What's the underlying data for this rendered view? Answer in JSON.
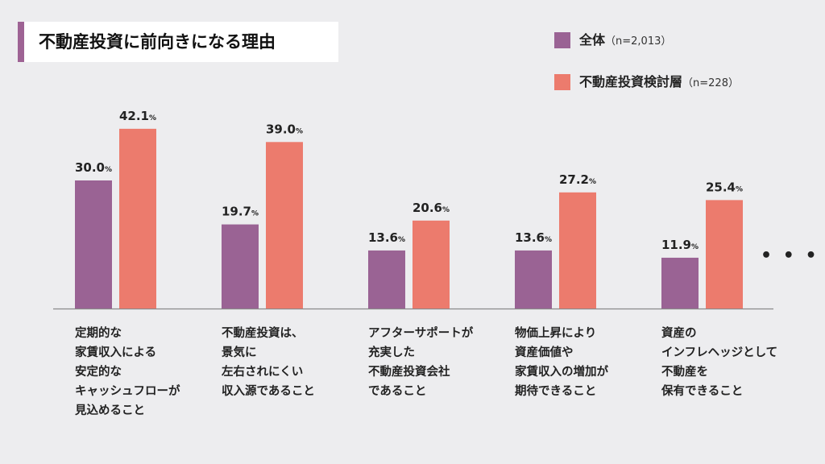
{
  "title": "不動産投資に前向きになる理由",
  "legend": [
    {
      "label": "全体",
      "n": "（n=2,013）",
      "color": "#9a6394"
    },
    {
      "label": "不動産投資検討層",
      "n": "（n=228）",
      "color": "#ec7b6d"
    }
  ],
  "ellipsis": "• • •",
  "chart_data": {
    "type": "bar",
    "title": "不動産投資に前向きになる理由",
    "categories": [
      "定期的な\n家賃収入による\n安定的な\nキャッシュフローが\n見込めること",
      "不動産投資は、\n景気に\n左右されにくい\n収入源であること",
      "アフターサポートが\n充実した\n不動産投資会社\nであること",
      "物価上昇により\n資産価値や\n家賃収入の増加が\n期待できること",
      "資産の\nインフレヘッジとして\n不動産を\n保有できること"
    ],
    "series": [
      {
        "name": "全体（n=2,013）",
        "color": "#9a6394",
        "values": [
          30.0,
          19.7,
          13.6,
          13.6,
          11.9
        ]
      },
      {
        "name": "不動産投資検討層（n=228）",
        "color": "#ec7b6d",
        "values": [
          42.1,
          39.0,
          20.6,
          27.2,
          25.4
        ]
      }
    ],
    "unit": "%",
    "ylim": [
      0,
      45
    ],
    "xlabel": "",
    "ylabel": ""
  }
}
